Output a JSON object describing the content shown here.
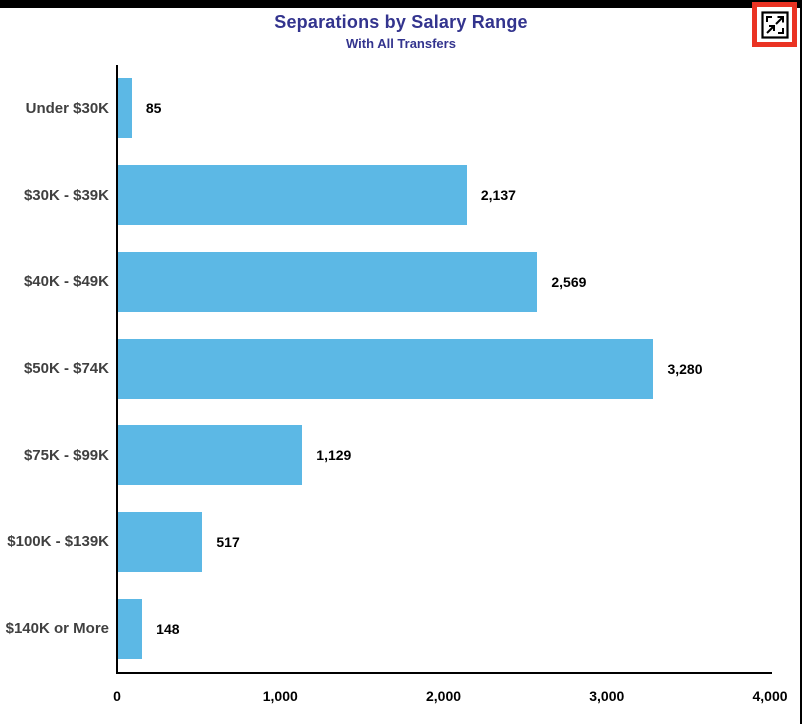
{
  "header": {
    "title": "Separations by Salary Range",
    "subtitle": "With All Transfers",
    "title_color": "#33348E"
  },
  "focus_button": {
    "icon": "focus-mode-icon",
    "highlight_color": "#EA3323"
  },
  "chart_data": {
    "type": "bar",
    "orientation": "horizontal",
    "title": "Separations by Salary Range",
    "subtitle": "With All Transfers",
    "categories": [
      "Under $30K",
      "$30K - $39K",
      "$40K - $49K",
      "$50K - $74K",
      "$75K - $99K",
      "$100K - $139K",
      "$140K or More"
    ],
    "values": [
      85,
      2137,
      2569,
      3280,
      1129,
      517,
      148
    ],
    "value_labels": [
      "85",
      "2,137",
      "2,569",
      "3,280",
      "1,129",
      "517",
      "148"
    ],
    "xlabel": "",
    "ylabel": "",
    "xlim": [
      0,
      4000
    ],
    "x_ticks": [
      "0",
      "1,000",
      "2,000",
      "3,000",
      "4,000"
    ],
    "x_tick_values": [
      0,
      1000,
      2000,
      3000,
      4000
    ],
    "bar_color": "#5CB8E5",
    "axis_color": "#000000",
    "grid": false,
    "legend": false
  }
}
